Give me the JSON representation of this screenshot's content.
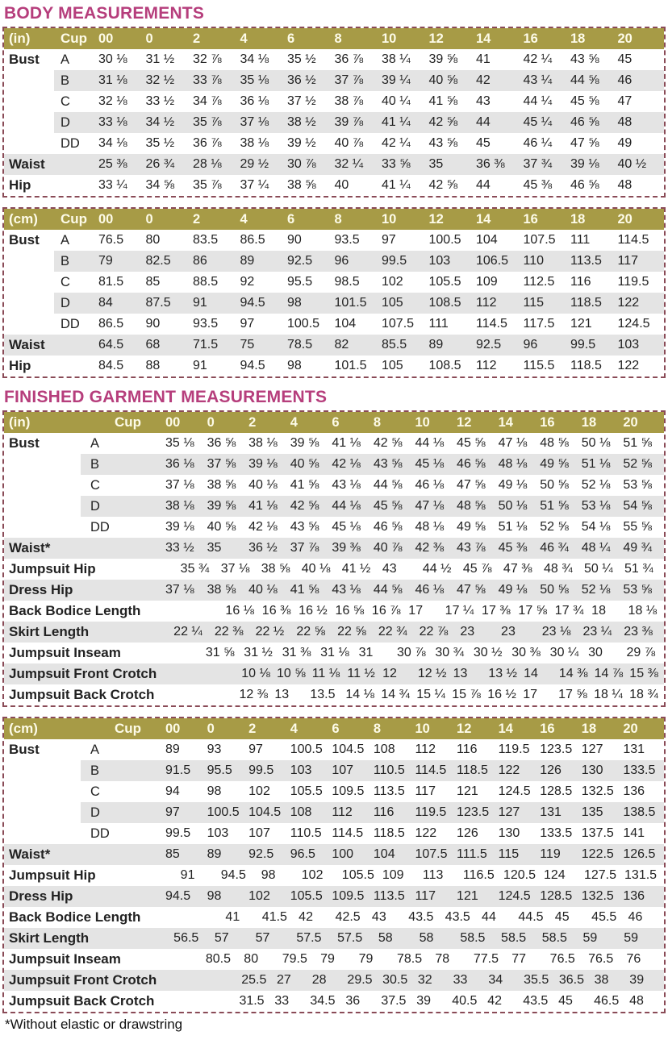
{
  "footnote": "*Without elastic or drawstring",
  "colors": {
    "header_band": "#a79b46",
    "title": "#b63e7c",
    "stripe": "#e4e4e4",
    "border": "#8a4b57",
    "header_text": "#fdfbe8",
    "text": "#222222"
  },
  "sections": [
    {
      "title": "BODY MEASUREMENTS",
      "tables": [
        {
          "unit_label": "(in)",
          "cup_label": "Cup",
          "sizes": [
            "00",
            "0",
            "2",
            "4",
            "6",
            "8",
            "10",
            "12",
            "14",
            "16",
            "18",
            "20"
          ],
          "rows": [
            {
              "label": "Bust",
              "cup": "A",
              "values": [
                "30 ⅛",
                "31 ½",
                "32 ⅞",
                "34 ⅛",
                "35 ½",
                "36 ⅞",
                "38 ¼",
                "39 ⅝",
                "41",
                "42 ¼",
                "43 ⅝",
                "45"
              ]
            },
            {
              "label": "",
              "cup": "B",
              "values": [
                "31 ⅛",
                "32 ½",
                "33 ⅞",
                "35 ⅛",
                "36 ½",
                "37 ⅞",
                "39 ¼",
                "40 ⅝",
                "42",
                "43 ¼",
                "44 ⅝",
                "46"
              ]
            },
            {
              "label": "",
              "cup": "C",
              "values": [
                "32 ⅛",
                "33 ½",
                "34 ⅞",
                "36 ⅛",
                "37 ½",
                "38 ⅞",
                "40 ¼",
                "41 ⅝",
                "43",
                "44 ¼",
                "45 ⅝",
                "47"
              ]
            },
            {
              "label": "",
              "cup": "D",
              "values": [
                "33 ⅛",
                "34 ½",
                "35 ⅞",
                "37 ⅛",
                "38 ½",
                "39 ⅞",
                "41 ¼",
                "42 ⅝",
                "44",
                "45 ¼",
                "46 ⅝",
                "48"
              ]
            },
            {
              "label": "",
              "cup": "DD",
              "values": [
                "34 ⅛",
                "35 ½",
                "36 ⅞",
                "38 ⅛",
                "39 ½",
                "40 ⅞",
                "42 ¼",
                "43 ⅝",
                "45",
                "46 ¼",
                "47 ⅝",
                "49"
              ]
            },
            {
              "label": "Waist",
              "cup": "",
              "values": [
                "25 ⅜",
                "26 ¾",
                "28 ⅛",
                "29 ½",
                "30 ⅞",
                "32 ¼",
                "33 ⅝",
                "35",
                "36 ⅜",
                "37 ¾",
                "39 ⅛",
                "40 ½"
              ]
            },
            {
              "label": "Hip",
              "cup": "",
              "values": [
                "33 ¼",
                "34 ⅝",
                "35 ⅞",
                "37 ¼",
                "38 ⅝",
                "40",
                "41 ¼",
                "42 ⅝",
                "44",
                "45 ⅜",
                "46 ⅝",
                "48"
              ]
            }
          ]
        },
        {
          "unit_label": "(cm)",
          "cup_label": "Cup",
          "sizes": [
            "00",
            "0",
            "2",
            "4",
            "6",
            "8",
            "10",
            "12",
            "14",
            "16",
            "18",
            "20"
          ],
          "rows": [
            {
              "label": "Bust",
              "cup": "A",
              "values": [
                "76.5",
                "80",
                "83.5",
                "86.5",
                "90",
                "93.5",
                "97",
                "100.5",
                "104",
                "107.5",
                "111",
                "114.5"
              ]
            },
            {
              "label": "",
              "cup": "B",
              "values": [
                "79",
                "82.5",
                "86",
                "89",
                "92.5",
                "96",
                "99.5",
                "103",
                "106.5",
                "110",
                "113.5",
                "117"
              ]
            },
            {
              "label": "",
              "cup": "C",
              "values": [
                "81.5",
                "85",
                "88.5",
                "92",
                "95.5",
                "98.5",
                "102",
                "105.5",
                "109",
                "112.5",
                "116",
                "119.5"
              ]
            },
            {
              "label": "",
              "cup": "D",
              "values": [
                "84",
                "87.5",
                "91",
                "94.5",
                "98",
                "101.5",
                "105",
                "108.5",
                "112",
                "115",
                "118.5",
                "122"
              ]
            },
            {
              "label": "",
              "cup": "DD",
              "values": [
                "86.5",
                "90",
                "93.5",
                "97",
                "100.5",
                "104",
                "107.5",
                "111",
                "114.5",
                "117.5",
                "121",
                "124.5"
              ]
            },
            {
              "label": "Waist",
              "cup": "",
              "values": [
                "64.5",
                "68",
                "71.5",
                "75",
                "78.5",
                "82",
                "85.5",
                "89",
                "92.5",
                "96",
                "99.5",
                "103"
              ]
            },
            {
              "label": "Hip",
              "cup": "",
              "values": [
                "84.5",
                "88",
                "91",
                "94.5",
                "98",
                "101.5",
                "105",
                "108.5",
                "112",
                "115.5",
                "118.5",
                "122"
              ]
            }
          ]
        }
      ]
    },
    {
      "title": "FINISHED GARMENT MEASUREMENTS",
      "tables": [
        {
          "unit_label": "(in)",
          "cup_label": "Cup",
          "sizes": [
            "00",
            "0",
            "2",
            "4",
            "6",
            "8",
            "10",
            "12",
            "14",
            "16",
            "18",
            "20"
          ],
          "rows": [
            {
              "label": "Bust",
              "cup": "A",
              "values": [
                "35 ⅛",
                "36 ⅝",
                "38 ⅛",
                "39 ⅝",
                "41 ⅛",
                "42 ⅝",
                "44 ⅛",
                "45 ⅝",
                "47 ⅛",
                "48 ⅝",
                "50 ⅛",
                "51 ⅝"
              ]
            },
            {
              "label": "",
              "cup": "B",
              "values": [
                "36 ⅛",
                "37 ⅝",
                "39 ⅛",
                "40 ⅝",
                "42 ⅛",
                "43 ⅝",
                "45 ⅛",
                "46 ⅝",
                "48 ⅛",
                "49 ⅝",
                "51 ⅛",
                "52 ⅝"
              ]
            },
            {
              "label": "",
              "cup": "C",
              "values": [
                "37 ⅛",
                "38 ⅝",
                "40 ⅛",
                "41 ⅝",
                "43 ⅛",
                "44 ⅝",
                "46 ⅛",
                "47 ⅝",
                "49 ⅛",
                "50 ⅝",
                "52 ⅛",
                "53 ⅝"
              ]
            },
            {
              "label": "",
              "cup": "D",
              "values": [
                "38 ⅛",
                "39 ⅝",
                "41 ⅛",
                "42 ⅝",
                "44 ⅛",
                "45 ⅝",
                "47 ⅛",
                "48 ⅝",
                "50 ⅛",
                "51 ⅝",
                "53 ⅛",
                "54 ⅝"
              ]
            },
            {
              "label": "",
              "cup": "DD",
              "values": [
                "39 ⅛",
                "40 ⅝",
                "42 ⅛",
                "43 ⅝",
                "45 ⅛",
                "46 ⅝",
                "48 ⅛",
                "49 ⅝",
                "51 ⅛",
                "52 ⅝",
                "54 ⅛",
                "55 ⅝"
              ]
            },
            {
              "label": "Waist*",
              "cup": "",
              "values": [
                "33 ½",
                "35",
                "36 ½",
                "37 ⅞",
                "39 ⅜",
                "40 ⅞",
                "42 ⅜",
                "43 ⅞",
                "45 ⅜",
                "46 ¾",
                "48 ¼",
                "49 ¾"
              ]
            },
            {
              "label": "Jumpsuit Hip",
              "cup": "",
              "values": [
                "35 ¾",
                "37 ⅛",
                "38 ⅝",
                "40 ⅛",
                "41 ½",
                "43",
                "44 ½",
                "45 ⅞",
                "47 ⅜",
                "48 ¾",
                "50 ¼",
                "51 ¾"
              ]
            },
            {
              "label": "Dress Hip",
              "cup": "",
              "values": [
                "37 ⅛",
                "38 ⅝",
                "40 ⅛",
                "41 ⅝",
                "43 ⅛",
                "44 ⅝",
                "46 ⅛",
                "47 ⅝",
                "49 ⅛",
                "50 ⅝",
                "52 ⅛",
                "53 ⅝"
              ]
            },
            {
              "label": "Back Bodice Length",
              "cup": "",
              "values": [
                "16 ⅛",
                "16 ⅜",
                "16 ½",
                "16 ⅝",
                "16 ⅞",
                "17",
                "17 ¼",
                "17 ⅜",
                "17 ⅝",
                "17 ¾",
                "18",
                "18 ⅛"
              ]
            },
            {
              "label": "Skirt Length",
              "cup": "",
              "values": [
                "22 ¼",
                "22 ⅜",
                "22 ½",
                "22 ⅝",
                "22 ⅝",
                "22 ¾",
                "22 ⅞",
                "23",
                "23",
                "23 ⅛",
                "23 ¼",
                "23 ⅜"
              ]
            },
            {
              "label": "Jumpsuit Inseam",
              "cup": "",
              "values": [
                "31 ⅝",
                "31 ½",
                "31 ⅜",
                "31 ⅛",
                "31",
                "30 ⅞",
                "30 ¾",
                "30 ½",
                "30 ⅜",
                "30 ¼",
                "30",
                "29 ⅞"
              ]
            },
            {
              "label": "Jumpsuit Front Crotch",
              "cup": "",
              "values": [
                "10 ⅛",
                "10 ⅝",
                "11 ⅛",
                "11 ½",
                "12",
                "12 ½",
                "13",
                "13 ½",
                "14",
                "14 ⅜",
                "14 ⅞",
                "15 ⅜"
              ]
            },
            {
              "label": "Jumpsuit Back Crotch",
              "cup": "",
              "values": [
                "12 ⅜",
                "13",
                "13.5",
                "14 ⅛",
                "14 ¾",
                "15 ¼",
                "15 ⅞",
                "16 ½",
                "17",
                "17 ⅝",
                "18 ¼",
                "18 ¾"
              ]
            }
          ]
        },
        {
          "unit_label": "(cm)",
          "cup_label": "Cup",
          "sizes": [
            "00",
            "0",
            "2",
            "4",
            "6",
            "8",
            "10",
            "12",
            "14",
            "16",
            "18",
            "20"
          ],
          "rows": [
            {
              "label": "Bust",
              "cup": "A",
              "values": [
                "89",
                "93",
                "97",
                "100.5",
                "104.5",
                "108",
                "112",
                "116",
                "119.5",
                "123.5",
                "127",
                "131"
              ]
            },
            {
              "label": "",
              "cup": "B",
              "values": [
                "91.5",
                "95.5",
                "99.5",
                "103",
                "107",
                "110.5",
                "114.5",
                "118.5",
                "122",
                "126",
                "130",
                "133.5"
              ]
            },
            {
              "label": "",
              "cup": "C",
              "values": [
                "94",
                "98",
                "102",
                "105.5",
                "109.5",
                "113.5",
                "117",
                "121",
                "124.5",
                "128.5",
                "132.5",
                "136"
              ]
            },
            {
              "label": "",
              "cup": "D",
              "values": [
                "97",
                "100.5",
                "104.5",
                "108",
                "112",
                "116",
                "119.5",
                "123.5",
                "127",
                "131",
                "135",
                "138.5"
              ]
            },
            {
              "label": "",
              "cup": "DD",
              "values": [
                "99.5",
                "103",
                "107",
                "110.5",
                "114.5",
                "118.5",
                "122",
                "126",
                "130",
                "133.5",
                "137.5",
                "141"
              ]
            },
            {
              "label": "Waist*",
              "cup": "",
              "values": [
                "85",
                "89",
                "92.5",
                "96.5",
                "100",
                "104",
                "107.5",
                "111.5",
                "115",
                "119",
                "122.5",
                "126.5"
              ]
            },
            {
              "label": "Jumpsuit Hip",
              "cup": "",
              "values": [
                "91",
                "94.5",
                "98",
                "102",
                "105.5",
                "109",
                "113",
                "116.5",
                "120.5",
                "124",
                "127.5",
                "131.5"
              ]
            },
            {
              "label": "Dress Hip",
              "cup": "",
              "values": [
                "94.5",
                "98",
                "102",
                "105.5",
                "109.5",
                "113.5",
                "117",
                "121",
                "124.5",
                "128.5",
                "132.5",
                "136"
              ]
            },
            {
              "label": "Back Bodice Length",
              "cup": "",
              "values": [
                "41",
                "41.5",
                "42",
                "42.5",
                "43",
                "43.5",
                "43.5",
                "44",
                "44.5",
                "45",
                "45.5",
                "46"
              ]
            },
            {
              "label": "Skirt Length",
              "cup": "",
              "values": [
                "56.5",
                "57",
                "57",
                "57.5",
                "57.5",
                "58",
                "58",
                "58.5",
                "58.5",
                "58.5",
                "59",
                "59"
              ]
            },
            {
              "label": "Jumpsuit Inseam",
              "cup": "",
              "values": [
                "80.5",
                "80",
                "79.5",
                "79",
                "79",
                "78.5",
                "78",
                "77.5",
                "77",
                "76.5",
                "76.5",
                "76"
              ]
            },
            {
              "label": "Jumpsuit Front Crotch",
              "cup": "",
              "values": [
                "25.5",
                "27",
                "28",
                "29.5",
                "30.5",
                "32",
                "33",
                "34",
                "35.5",
                "36.5",
                "38",
                "39"
              ]
            },
            {
              "label": "Jumpsuit Back Crotch",
              "cup": "",
              "values": [
                "31.5",
                "33",
                "34.5",
                "36",
                "37.5",
                "39",
                "40.5",
                "42",
                "43.5",
                "45",
                "46.5",
                "48"
              ]
            }
          ]
        }
      ]
    }
  ]
}
